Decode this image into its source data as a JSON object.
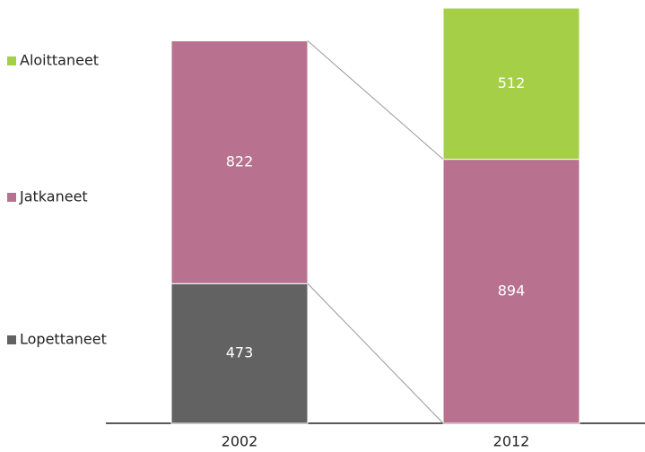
{
  "chart_data": {
    "type": "stacked_bar",
    "categories": [
      "2002",
      "2012"
    ],
    "series": [
      {
        "name": "Lopettaneet",
        "color": "#626262",
        "values": [
          473,
          null
        ]
      },
      {
        "name": "Jatkaneet",
        "color": "#b87290",
        "values": [
          822,
          894
        ]
      },
      {
        "name": "Aloittaneet",
        "color": "#a6cf48",
        "values": [
          null,
          512
        ]
      }
    ],
    "legend": "left"
  }
}
